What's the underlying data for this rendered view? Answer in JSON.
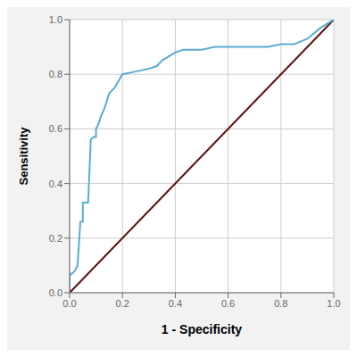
{
  "chart_data": {
    "type": "line",
    "xlabel": "1 - Specificity",
    "ylabel": "Sensitivity",
    "xlim": [
      0.0,
      1.0
    ],
    "ylim": [
      0.0,
      1.0
    ],
    "xticks": [
      {
        "value": 0.0,
        "label": "0.0"
      },
      0.2,
      0.4,
      0.6,
      0.8,
      {
        "value": 1.0,
        "label": "1.0"
      }
    ],
    "yticks": [
      {
        "value": 0.0,
        "label": "0.0"
      },
      0.2,
      0.4,
      0.6,
      0.8,
      {
        "value": 1.0,
        "label": "1.0"
      }
    ],
    "grid": true,
    "series": [
      {
        "color": "#5c1010",
        "x": [
          0.0,
          1.0
        ],
        "values": [
          0.0,
          1.0
        ]
      },
      {
        "color": "#5bacd4",
        "x": [
          0.0,
          0.0,
          0.005,
          0.01,
          0.02,
          0.03,
          0.04,
          0.04,
          0.05,
          0.05,
          0.06,
          0.07,
          0.08,
          0.09,
          0.095,
          0.1,
          0.1,
          0.11,
          0.12,
          0.13,
          0.14,
          0.15,
          0.16,
          0.17,
          0.2,
          0.25,
          0.3,
          0.33,
          0.35,
          0.4,
          0.43,
          0.45,
          0.5,
          0.55,
          0.6,
          0.65,
          0.7,
          0.75,
          0.8,
          0.85,
          0.9,
          0.95,
          1.0
        ],
        "values": [
          0.0,
          0.06,
          0.07,
          0.07,
          0.08,
          0.1,
          0.25,
          0.26,
          0.26,
          0.33,
          0.33,
          0.33,
          0.56,
          0.57,
          0.57,
          0.57,
          0.6,
          0.62,
          0.65,
          0.67,
          0.7,
          0.73,
          0.74,
          0.75,
          0.8,
          0.81,
          0.82,
          0.83,
          0.85,
          0.88,
          0.89,
          0.89,
          0.89,
          0.9,
          0.9,
          0.9,
          0.9,
          0.9,
          0.91,
          0.91,
          0.93,
          0.97,
          1.0
        ]
      }
    ]
  }
}
